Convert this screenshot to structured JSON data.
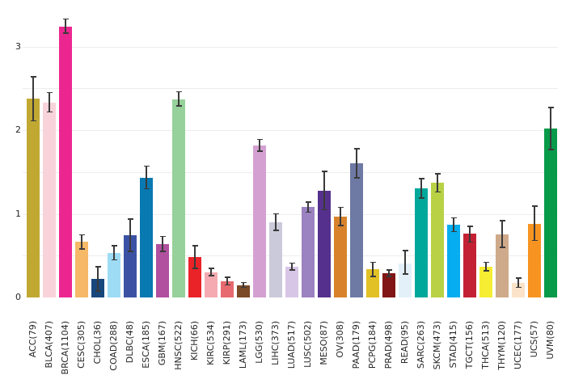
{
  "chart_data": {
    "type": "bar",
    "title": "",
    "xlabel": "",
    "ylabel": "",
    "legend": "none",
    "grid": "horizontal",
    "grid_color": "#ededed",
    "background_color": "#ffffff",
    "error_bar_color": "#3a3a3a",
    "text_color": "#262626",
    "ylim": [
      0,
      3.45
    ],
    "yticks": [
      0,
      1,
      2,
      3
    ],
    "gridline_values": [
      0.5,
      1,
      1.5,
      2,
      2.5,
      3
    ],
    "categories": [
      "ACC(79)",
      "BLCA(407)",
      "BRCA(1104)",
      "CESC(305)",
      "CHOL(36)",
      "COAD(288)",
      "DLBC(48)",
      "ESCA(185)",
      "GBM(167)",
      "HNSC(522)",
      "KICH(66)",
      "KIRC(534)",
      "KIRP(291)",
      "LAML(173)",
      "LGG(530)",
      "LIHC(373)",
      "LUAD(517)",
      "LUSC(502)",
      "MESO(87)",
      "OV(308)",
      "PAAD(179)",
      "PCPG(184)",
      "PRAD(498)",
      "READ(95)",
      "SARC(263)",
      "SKCM(473)",
      "STAD(415)",
      "TGCT(156)",
      "THCA(513)",
      "THYM(120)",
      "UCEC(177)",
      "UCS(57)",
      "UVM(80)"
    ],
    "values": [
      2.38,
      2.33,
      3.24,
      0.67,
      0.22,
      0.53,
      0.74,
      1.43,
      0.64,
      2.37,
      0.48,
      0.3,
      0.19,
      0.15,
      1.82,
      0.9,
      0.37,
      1.08,
      1.28,
      0.97,
      1.6,
      0.34,
      0.29,
      0.41,
      1.3,
      1.37,
      0.87,
      0.76,
      0.37,
      0.75,
      0.17,
      0.88,
      2.02
    ],
    "error_low": [
      2.11,
      2.22,
      3.16,
      0.58,
      0.08,
      0.45,
      0.55,
      1.3,
      0.55,
      2.29,
      0.35,
      0.26,
      0.15,
      0.12,
      1.75,
      0.8,
      0.33,
      1.02,
      1.05,
      0.86,
      1.43,
      0.25,
      0.25,
      0.28,
      1.19,
      1.26,
      0.79,
      0.66,
      0.32,
      0.6,
      0.12,
      0.68,
      1.77
    ],
    "error_high": [
      2.64,
      2.45,
      3.33,
      0.75,
      0.37,
      0.62,
      0.94,
      1.57,
      0.73,
      2.46,
      0.62,
      0.35,
      0.24,
      0.18,
      1.89,
      1.0,
      0.41,
      1.14,
      1.51,
      1.08,
      1.78,
      0.42,
      0.33,
      0.56,
      1.42,
      1.48,
      0.95,
      0.85,
      0.42,
      0.92,
      0.23,
      1.09,
      2.27
    ],
    "bar_colors": [
      "#c1a832",
      "#f9d3da",
      "#ec2690",
      "#f5b968",
      "#17477d",
      "#9edcf5",
      "#3b52a4",
      "#0879b1",
      "#b0509e",
      "#96d09a",
      "#ea2328",
      "#f5aab2",
      "#e66a6f",
      "#7b4a27",
      "#d4a0d2",
      "#cbcada",
      "#d8c6e6",
      "#9b82c0",
      "#55318d",
      "#d8832b",
      "#6e79a4",
      "#e2c126",
      "#821617",
      "#e3f0f9",
      "#00a89b",
      "#b9d145",
      "#06adef",
      "#c32133",
      "#f6ee33",
      "#cfaa8a",
      "#fbe3c9",
      "#f79421",
      "#079a49"
    ]
  }
}
